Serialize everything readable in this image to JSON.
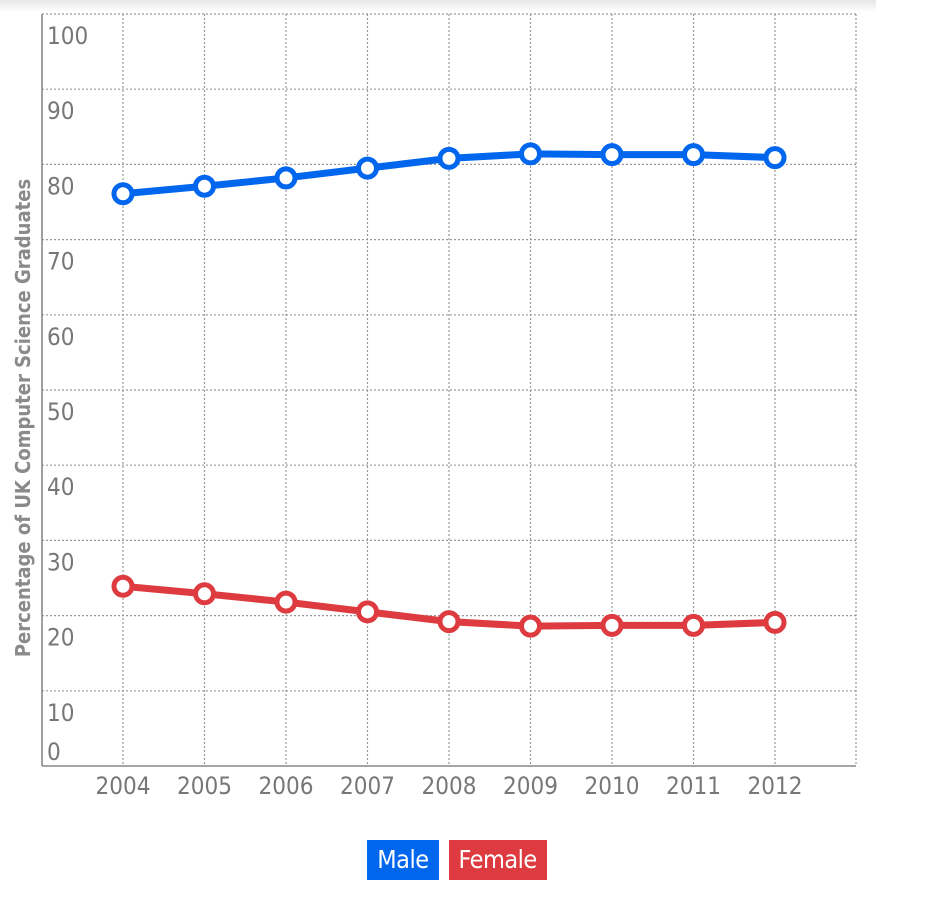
{
  "chart_data": {
    "type": "line",
    "title": "",
    "xlabel": "",
    "ylabel": "Percentage of UK Computer Science Graduates",
    "categories": [
      "2004",
      "2005",
      "2006",
      "2007",
      "2008",
      "2009",
      "2010",
      "2011",
      "2012"
    ],
    "yticks": [
      "0",
      "10",
      "20",
      "30",
      "40",
      "50",
      "60",
      "70",
      "80",
      "90",
      "100"
    ],
    "ylim": [
      0,
      100
    ],
    "grid": true,
    "legend_position": "bottom-center",
    "series": [
      {
        "name": "Male",
        "color": "#0066ee",
        "values": [
          76.1,
          77.1,
          78.2,
          79.5,
          80.8,
          81.4,
          81.3,
          81.3,
          80.9
        ]
      },
      {
        "name": "Female",
        "color": "#dd3b3f",
        "values": [
          23.9,
          22.9,
          21.8,
          20.5,
          19.2,
          18.6,
          18.7,
          18.7,
          19.1
        ]
      }
    ]
  },
  "legend": {
    "male_label": "Male",
    "female_label": "Female"
  }
}
